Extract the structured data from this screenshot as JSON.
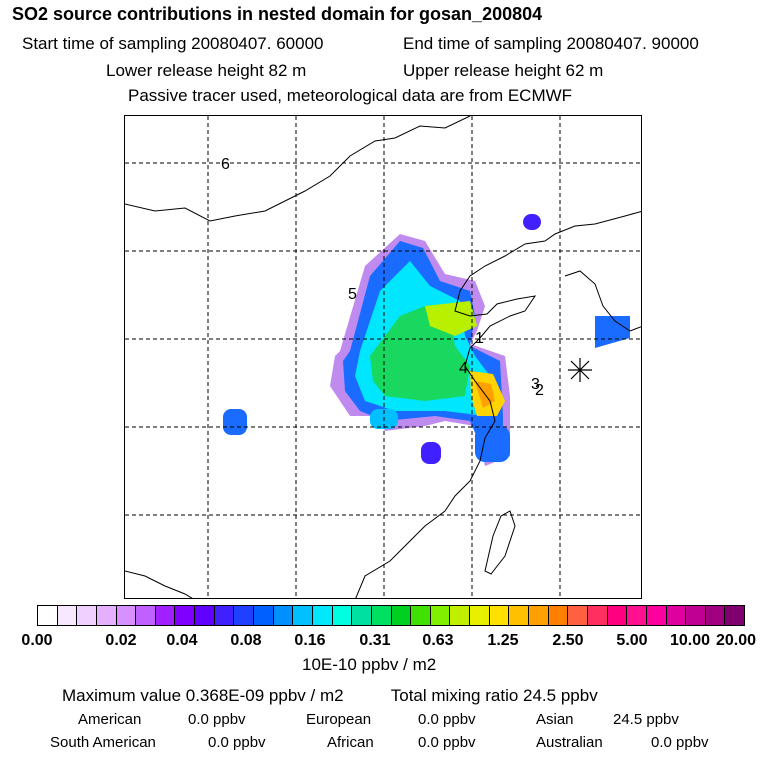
{
  "header": {
    "title": "SO2 source contributions in nested domain for gosan_200804",
    "start_time": "Start time of sampling 20080407. 60000",
    "end_time": "End time of sampling 20080407. 90000",
    "lower_release": "Lower release height   82 m",
    "upper_release": "Upper release height   62 m",
    "note": "Passive tracer used, meteorological data are from ECMWF"
  },
  "map": {
    "region_labels": [
      "6",
      "5",
      "1",
      "4",
      "3",
      "2"
    ],
    "receptor_marker": "receptor-asterisk"
  },
  "colorbar": {
    "ticks": [
      "0.00",
      "0.02",
      "0.04",
      "0.08",
      "0.16",
      "0.31",
      "0.63",
      "1.25",
      "2.50",
      "5.00",
      "10.00",
      "20.00"
    ],
    "unit": "10E-10 ppbv / m2",
    "colors": [
      "#ffffff",
      "#f8e8ff",
      "#f0d0ff",
      "#e4b0ff",
      "#d890ff",
      "#c060ff",
      "#a020ff",
      "#8000ff",
      "#6000ff",
      "#4020ff",
      "#2040ff",
      "#0060ff",
      "#0090ff",
      "#00c0ff",
      "#00e8ff",
      "#00ffe0",
      "#00e0a0",
      "#00e060",
      "#00d020",
      "#40e000",
      "#80f000",
      "#c0f000",
      "#e8f000",
      "#ffe000",
      "#ffc000",
      "#ffa000",
      "#ff8000",
      "#ff6040",
      "#ff3060",
      "#ff0080",
      "#ff1090",
      "#ff00a0",
      "#e000a0",
      "#c00090",
      "#a00080",
      "#800070"
    ]
  },
  "summary": {
    "max_label": "Maximum value  0.368E-09 ppbv / m2",
    "total_label": "Total mixing ratio       24.5 ppbv",
    "american": "American",
    "american_val": "0.0 ppbv",
    "european": "European",
    "european_val": "0.0 ppbv",
    "asian": "Asian",
    "asian_val": "24.5 ppbv",
    "south_american": "South American",
    "south_american_val": "0.0 ppbv",
    "african": "African",
    "african_val": "0.0 ppbv",
    "australian": "Australian",
    "australian_val": "0.0 ppbv"
  }
}
